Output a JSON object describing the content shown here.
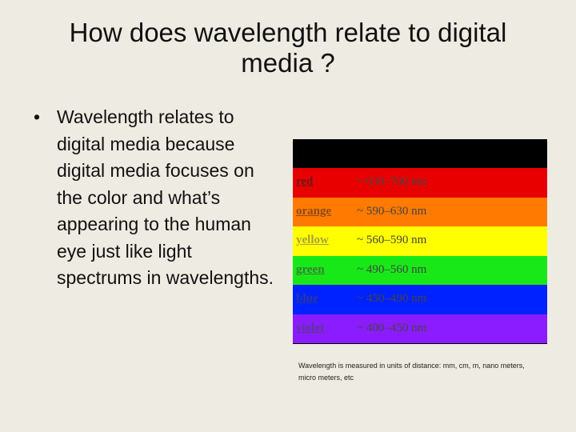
{
  "slide": {
    "title": "How does wavelength relate to digital media ?",
    "bullet_marker": "•",
    "bullet_text": "Wavelength relates to digital media because digital media focuses on the color and what’s appearing to the human eye just like light spectrums in wavelengths."
  },
  "spectrum": {
    "bands": [
      {
        "name": "red",
        "range": "~ 630–700 nm",
        "bg": "#e80000",
        "fg": "#6a1a1a"
      },
      {
        "name": "orange",
        "range": "~ 590–630 nm",
        "bg": "#ff7a00",
        "fg": "#8a4a1a"
      },
      {
        "name": "yellow",
        "range": "~ 560–590 nm",
        "bg": "#ffff00",
        "fg": "#a8a040"
      },
      {
        "name": "green",
        "range": "~ 490–560 nm",
        "bg": "#18e818",
        "fg": "#3a7a3a"
      },
      {
        "name": "blue",
        "range": "~ 450–490 nm",
        "bg": "#0022ff",
        "fg": "#2a3a9a"
      },
      {
        "name": "violet",
        "range": "~ 400–450 nm",
        "bg": "#8a1cff",
        "fg": "#5a3a8a"
      }
    ]
  },
  "caption": "Wavelength is measured in units of distance: mm, cm, m, nano meters, micro meters, etc"
}
